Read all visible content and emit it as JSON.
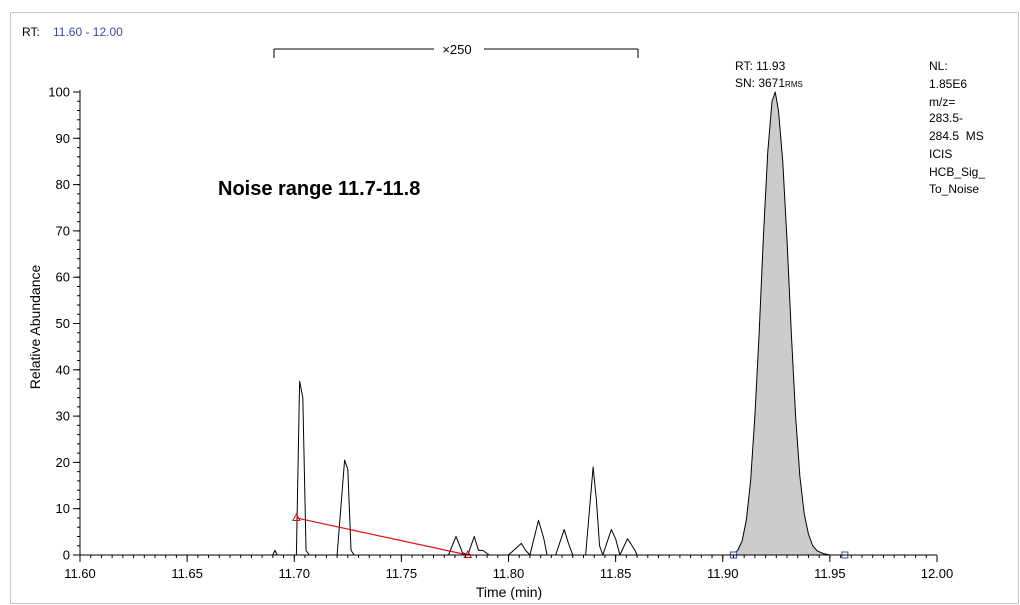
{
  "header": {
    "rt_label": "RT:",
    "rt_range": "11.60 - 12.00"
  },
  "annotations": {
    "scale_factor": "×250",
    "noise_range": "Noise range 11.7-11.8",
    "peak_rt": "RT: 11.93",
    "peak_sn": "SN: 3671",
    "peak_sn_suffix": "RMS"
  },
  "info_panel": {
    "lines": [
      "NL:",
      "1.85E6",
      "m/z=",
      "283.5-",
      "284.5  MS",
      "ICIS",
      "HCB_Sig_",
      "To_Noise"
    ]
  },
  "colors": {
    "range_text": "#3a4a9a",
    "peak_fill": "#cccccc",
    "noise_line": "#dd1111",
    "baseline_marker": "#3355aa"
  },
  "chart_data": {
    "type": "line",
    "xlabel": "Time (min)",
    "ylabel": "Relative Abundance",
    "xlim": [
      11.6,
      12.0
    ],
    "ylim": [
      0,
      100
    ],
    "x_ticks": [
      "11.60",
      "11.65",
      "11.70",
      "11.75",
      "11.80",
      "11.85",
      "11.90",
      "11.95",
      "12.00"
    ],
    "y_ticks": [
      "0",
      "10",
      "20",
      "30",
      "40",
      "50",
      "60",
      "70",
      "80",
      "90",
      "100"
    ],
    "grid": false,
    "scaled_region": {
      "x": [
        11.69,
        11.86
      ],
      "factor": 250
    },
    "series": [
      {
        "points": [
          [
            11.6,
            0
          ],
          [
            11.69,
            0
          ],
          [
            11.691,
            1.0
          ],
          [
            11.692,
            0
          ],
          [
            11.701,
            0
          ],
          [
            11.7025,
            37.5
          ],
          [
            11.704,
            34
          ],
          [
            11.7055,
            1
          ],
          [
            11.707,
            0
          ],
          [
            11.72,
            0
          ],
          [
            11.7235,
            20.5
          ],
          [
            11.725,
            18.5
          ],
          [
            11.7265,
            1
          ],
          [
            11.728,
            0
          ],
          [
            11.772,
            0
          ],
          [
            11.7755,
            4
          ],
          [
            11.7785,
            0.5
          ],
          [
            11.781,
            0
          ],
          [
            11.784,
            4
          ],
          [
            11.786,
            1
          ],
          [
            11.788,
            1
          ],
          [
            11.791,
            0
          ],
          [
            11.8,
            0
          ],
          [
            11.806,
            2.5
          ],
          [
            11.808,
            1
          ],
          [
            11.81,
            0
          ],
          [
            11.814,
            7.5
          ],
          [
            11.8165,
            3.5
          ],
          [
            11.818,
            0
          ],
          [
            11.822,
            0
          ],
          [
            11.826,
            5.5
          ],
          [
            11.828,
            2.5
          ],
          [
            11.83,
            0
          ],
          [
            11.836,
            0
          ],
          [
            11.8395,
            19
          ],
          [
            11.841,
            12
          ],
          [
            11.8425,
            2
          ],
          [
            11.844,
            0
          ],
          [
            11.848,
            5.5
          ],
          [
            11.85,
            3.5
          ],
          [
            11.852,
            0
          ],
          [
            11.8555,
            3.5
          ],
          [
            11.857,
            2.5
          ],
          [
            11.859,
            1
          ],
          [
            11.86,
            0
          ],
          [
            11.903,
            0
          ]
        ]
      },
      {
        "fill": true,
        "points": [
          [
            11.903,
            0
          ],
          [
            11.905,
            0.3
          ],
          [
            11.907,
            1.0
          ],
          [
            11.909,
            3.0
          ],
          [
            11.911,
            7.5
          ],
          [
            11.913,
            16
          ],
          [
            11.915,
            30
          ],
          [
            11.917,
            48
          ],
          [
            11.919,
            69
          ],
          [
            11.921,
            87
          ],
          [
            11.923,
            98
          ],
          [
            11.9245,
            100
          ],
          [
            11.926,
            96
          ],
          [
            11.928,
            85
          ],
          [
            11.93,
            68
          ],
          [
            11.932,
            48
          ],
          [
            11.934,
            30
          ],
          [
            11.936,
            17
          ],
          [
            11.938,
            9
          ],
          [
            11.94,
            4.5
          ],
          [
            11.942,
            2
          ],
          [
            11.944,
            0.9
          ],
          [
            11.947,
            0.3
          ],
          [
            11.95,
            0
          ],
          [
            12.0,
            0
          ]
        ]
      }
    ],
    "noise_line": {
      "x": [
        11.701,
        11.781
      ],
      "y": [
        8,
        0
      ]
    },
    "baseline_markers": {
      "x": [
        11.905,
        11.957
      ],
      "y": 0
    }
  }
}
